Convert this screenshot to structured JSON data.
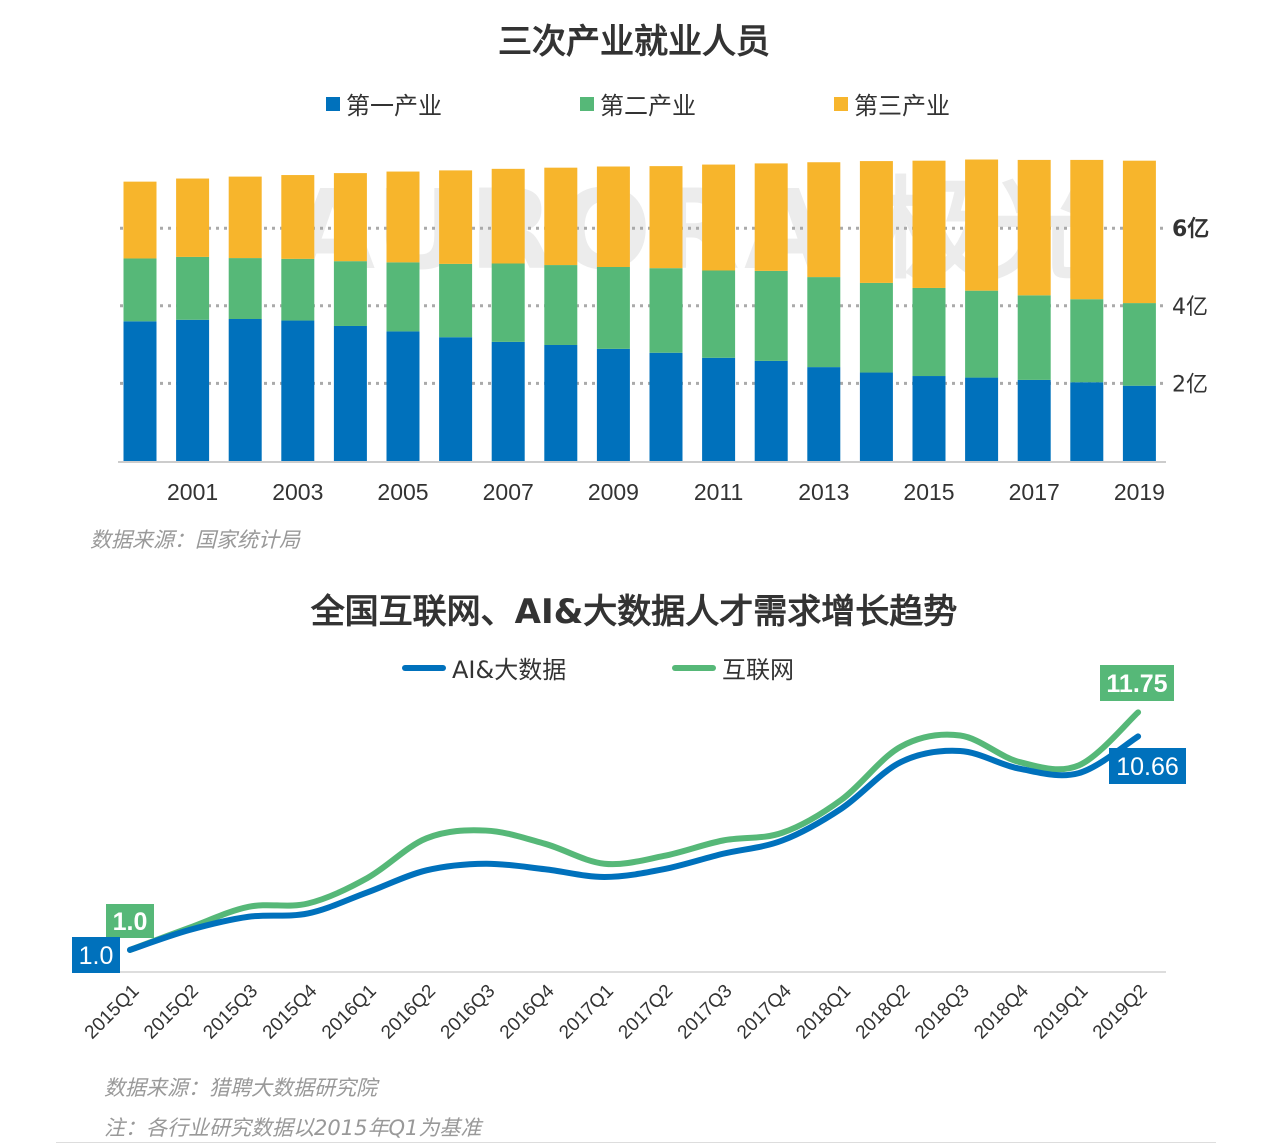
{
  "watermark": "AURORA 极光",
  "chart_data": [
    {
      "type": "bar",
      "stacked": true,
      "title": "三次产业就业人员",
      "categories": [
        "2000",
        "2001",
        "2002",
        "2003",
        "2004",
        "2005",
        "2006",
        "2007",
        "2008",
        "2009",
        "2010",
        "2011",
        "2012",
        "2013",
        "2014",
        "2015",
        "2016",
        "2017",
        "2018",
        "2019"
      ],
      "xtick_labels": [
        "2001",
        "2003",
        "2005",
        "2007",
        "2009",
        "2011",
        "2013",
        "2015",
        "2017",
        "2019"
      ],
      "ytick_labels": [
        "2亿",
        "4亿",
        "6亿"
      ],
      "yticks": [
        2,
        4,
        6
      ],
      "ylim": [
        0,
        8.2
      ],
      "yunit": "亿",
      "grid": "dotted horizontal",
      "axis_side": "right",
      "legend_position": "top",
      "series": [
        {
          "name": "第一产业",
          "color": "#0071BC",
          "values": [
            3.6,
            3.64,
            3.66,
            3.62,
            3.48,
            3.34,
            3.19,
            3.07,
            2.99,
            2.89,
            2.79,
            2.66,
            2.58,
            2.42,
            2.28,
            2.19,
            2.15,
            2.09,
            2.03,
            1.94
          ]
        },
        {
          "name": "第二产业",
          "color": "#56B878",
          "values": [
            1.62,
            1.62,
            1.57,
            1.59,
            1.67,
            1.78,
            1.89,
            2.02,
            2.06,
            2.11,
            2.18,
            2.25,
            2.32,
            2.32,
            2.31,
            2.27,
            2.24,
            2.18,
            2.14,
            2.13
          ]
        },
        {
          "name": "第三产业",
          "color": "#F7B52C",
          "values": [
            1.98,
            2.02,
            2.1,
            2.16,
            2.27,
            2.34,
            2.41,
            2.44,
            2.51,
            2.59,
            2.63,
            2.73,
            2.77,
            2.96,
            3.14,
            3.28,
            3.38,
            3.49,
            3.59,
            3.67
          ]
        }
      ],
      "source": "数据来源：国家统计局"
    },
    {
      "type": "line",
      "title": "全国互联网、AI&大数据人才需求增长趋势",
      "categories": [
        "2015Q1",
        "2015Q2",
        "2015Q3",
        "2015Q4",
        "2016Q1",
        "2016Q2",
        "2016Q3",
        "2016Q4",
        "2017Q1",
        "2017Q2",
        "2017Q3",
        "2017Q4",
        "2018Q1",
        "2018Q2",
        "2018Q3",
        "2018Q4",
        "2019Q1",
        "2019Q2"
      ],
      "ylim": [
        0,
        12.5
      ],
      "legend_position": "top",
      "series": [
        {
          "name": "AI&大数据",
          "color": "#0071BC",
          "values": [
            1.0,
            1.9,
            2.5,
            2.65,
            3.6,
            4.6,
            4.9,
            4.65,
            4.3,
            4.65,
            5.35,
            5.95,
            7.4,
            9.5,
            10.0,
            9.2,
            9.0,
            10.66
          ],
          "labels": {
            "first": "1.0",
            "last": "10.66"
          }
        },
        {
          "name": "互联网",
          "color": "#56B878",
          "values": [
            1.0,
            2.0,
            2.95,
            3.1,
            4.25,
            6.05,
            6.4,
            5.8,
            4.9,
            5.25,
            5.95,
            6.3,
            7.8,
            10.2,
            10.7,
            9.5,
            9.35,
            11.75
          ],
          "labels": {
            "first": "1.0",
            "last": "11.75"
          }
        }
      ],
      "source": "数据来源：猎聘大数据研究院",
      "note": "注：各行业研究数据以2015年Q1为基准"
    }
  ]
}
